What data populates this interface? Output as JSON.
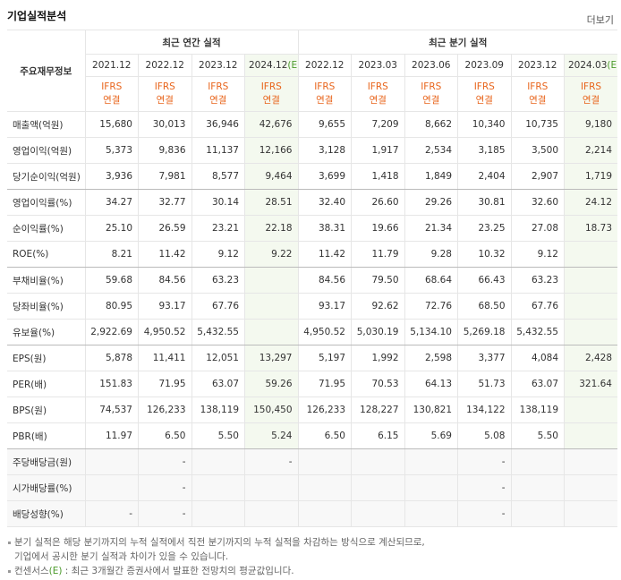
{
  "header": {
    "title": "기업실적분석",
    "more": "더보기"
  },
  "table": {
    "corner": "주요재무정보",
    "groups": [
      "최근 연간 실적",
      "최근 분기 실적"
    ],
    "annual_periods": [
      {
        "date": "2021.12"
      },
      {
        "date": "2022.12"
      },
      {
        "date": "2023.12"
      },
      {
        "date": "2024.12",
        "mark": "(E)"
      }
    ],
    "quarter_periods": [
      {
        "date": "2022.12"
      },
      {
        "date": "2023.03"
      },
      {
        "date": "2023.06"
      },
      {
        "date": "2023.09"
      },
      {
        "date": "2023.12"
      },
      {
        "date": "2024.03",
        "mark": "(E)"
      }
    ],
    "standard": "IFRS",
    "scope": "연결",
    "rows": [
      {
        "name": "매출액(억원)",
        "annual": [
          "15,680",
          "30,013",
          "36,946",
          "42,676"
        ],
        "quarter": [
          "9,655",
          "7,209",
          "8,662",
          "10,340",
          "10,735",
          "9,180"
        ]
      },
      {
        "name": "영업이익(억원)",
        "annual": [
          "5,373",
          "9,836",
          "11,137",
          "12,166"
        ],
        "quarter": [
          "3,128",
          "1,917",
          "2,534",
          "3,185",
          "3,500",
          "2,214"
        ]
      },
      {
        "name": "당기순이익(억원)",
        "annual": [
          "3,936",
          "7,981",
          "8,577",
          "9,464"
        ],
        "quarter": [
          "3,699",
          "1,418",
          "1,849",
          "2,404",
          "2,907",
          "1,719"
        ]
      },
      {
        "name": "영업이익률(%)",
        "annual": [
          "34.27",
          "32.77",
          "30.14",
          "28.51"
        ],
        "quarter": [
          "32.40",
          "26.60",
          "29.26",
          "30.81",
          "32.60",
          "24.12"
        ]
      },
      {
        "name": "순이익률(%)",
        "annual": [
          "25.10",
          "26.59",
          "23.21",
          "22.18"
        ],
        "quarter": [
          "38.31",
          "19.66",
          "21.34",
          "23.25",
          "27.08",
          "18.73"
        ]
      },
      {
        "name": "ROE(%)",
        "annual": [
          "8.21",
          "11.42",
          "9.12",
          "9.22"
        ],
        "quarter": [
          "11.42",
          "11.79",
          "9.28",
          "10.32",
          "9.12",
          null
        ]
      },
      {
        "name": "부채비율(%)",
        "annual": [
          "59.68",
          "84.56",
          "63.23",
          null
        ],
        "quarter": [
          "84.56",
          "79.50",
          "68.64",
          "66.43",
          "63.23",
          null
        ]
      },
      {
        "name": "당좌비율(%)",
        "annual": [
          "80.95",
          "93.17",
          "67.76",
          null
        ],
        "quarter": [
          "93.17",
          "92.62",
          "72.76",
          "68.50",
          "67.76",
          null
        ]
      },
      {
        "name": "유보율(%)",
        "annual": [
          "2,922.69",
          "4,950.52",
          "5,432.55",
          null
        ],
        "quarter": [
          "4,950.52",
          "5,030.19",
          "5,134.10",
          "5,269.18",
          "5,432.55",
          null
        ]
      },
      {
        "name": "EPS(원)",
        "annual": [
          "5,878",
          "11,411",
          "12,051",
          "13,297"
        ],
        "quarter": [
          "5,197",
          "1,992",
          "2,598",
          "3,377",
          "4,084",
          "2,428"
        ]
      },
      {
        "name": "PER(배)",
        "annual": [
          "151.83",
          "71.95",
          "63.07",
          "59.26"
        ],
        "quarter": [
          "71.95",
          "70.53",
          "64.13",
          "51.73",
          "63.07",
          "321.64"
        ]
      },
      {
        "name": "BPS(원)",
        "annual": [
          "74,537",
          "126,233",
          "138,119",
          "150,450"
        ],
        "quarter": [
          "126,233",
          "128,227",
          "130,821",
          "134,122",
          "138,119",
          null
        ]
      },
      {
        "name": "PBR(배)",
        "annual": [
          "11.97",
          "6.50",
          "5.50",
          "5.24"
        ],
        "quarter": [
          "6.50",
          "6.15",
          "5.69",
          "5.08",
          "5.50",
          null
        ]
      },
      {
        "name": "주당배당금(원)",
        "annual": [
          null,
          "-",
          null,
          "-"
        ],
        "quarter": [
          null,
          null,
          null,
          "-",
          null,
          null
        ]
      },
      {
        "name": "시가배당률(%)",
        "annual": [
          null,
          "-",
          null,
          null
        ],
        "quarter": [
          null,
          null,
          null,
          "-",
          null,
          null
        ]
      },
      {
        "name": "배당성향(%)",
        "annual": [
          "-",
          "-",
          null,
          null
        ],
        "quarter": [
          null,
          null,
          null,
          "-",
          null,
          null
        ]
      }
    ]
  },
  "notes": [
    {
      "lines": [
        "분기 실적은 해당 분기까지의 누적 실적에서 직전 분기까지의 누적 실적을 차감하는 방식으로 계산되므로,",
        "기업에서 공시한 분기 실적과 차이가 있을 수 있습니다."
      ]
    },
    {
      "lead": "컨센서스",
      "mark": "(E)",
      "text": " : 최근 3개월간 증권사에서 발표한 전망치의 평균값입니다."
    }
  ]
}
